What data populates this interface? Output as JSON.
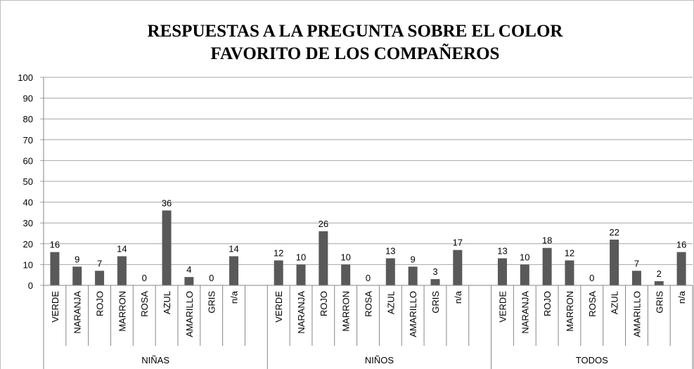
{
  "chart_data": {
    "type": "bar",
    "title": [
      "RESPUESTAS A LA PREGUNTA SOBRE EL COLOR",
      "FAVORITO DE  LOS COMPAÑEROS"
    ],
    "color": "#595959",
    "grid": true,
    "ylim": [
      0,
      100
    ],
    "yticks": [
      0,
      10,
      20,
      30,
      40,
      50,
      60,
      70,
      80,
      90,
      100
    ],
    "groups": [
      {
        "name": "NIÑAS",
        "categories": [
          "VERDE",
          "NARANJA",
          "ROJO",
          "MARRON",
          "ROSA",
          "AZUL",
          "AMARILLO",
          "GRIS",
          "n/a"
        ],
        "values": [
          16,
          9,
          7,
          14,
          0,
          36,
          4,
          0,
          14
        ]
      },
      {
        "name": "NIÑOS",
        "categories": [
          "VERDE",
          "NARANJA",
          "ROJO",
          "MARRON",
          "ROSA",
          "AZUL",
          "AMARILLO",
          "GRIS",
          "n/a"
        ],
        "values": [
          12,
          10,
          26,
          10,
          0,
          13,
          9,
          3,
          17
        ]
      },
      {
        "name": "TODOS",
        "categories": [
          "VERDE",
          "NARANJA",
          "ROJO",
          "MARRON",
          "ROSA",
          "AZUL",
          "AMARILLO",
          "GRIS",
          "n/a"
        ],
        "values": [
          13,
          10,
          18,
          12,
          0,
          22,
          7,
          2,
          16
        ]
      }
    ]
  }
}
